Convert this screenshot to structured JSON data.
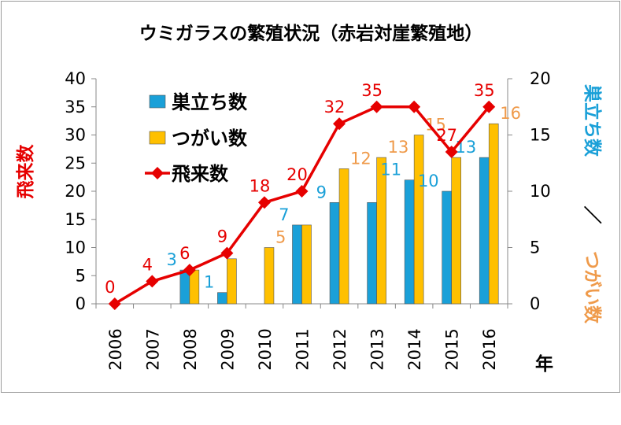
{
  "chart_data": {
    "type": "bar",
    "title": "ウミガラスの繁殖状況（赤岩対崖繁殖地）",
    "categories": [
      "2006",
      "2007",
      "2008",
      "2009",
      "2010",
      "2011",
      "2012",
      "2013",
      "2014",
      "2015",
      "2016"
    ],
    "xlabel": "年",
    "ylabel_left": "飛来数",
    "ylim_left": [
      0,
      40
    ],
    "yticks_left": [
      "0",
      "5",
      "10",
      "15",
      "20",
      "25",
      "30",
      "35",
      "40"
    ],
    "ylabel_right_1": "巣立ち数",
    "ylabel_right_sep": "／",
    "ylabel_right_2": "つがい数",
    "ylim_right": [
      0,
      20
    ],
    "yticks_right": [
      "0",
      "5",
      "10",
      "15",
      "20"
    ],
    "grid": false,
    "legend_position": "top-left",
    "series": [
      {
        "name": "巣立ち数",
        "type": "bar",
        "axis": "right",
        "color": "#1aa0d8",
        "values": [
          0,
          0,
          3,
          1,
          0,
          7,
          9,
          9,
          11,
          10,
          13
        ],
        "labels": [
          "",
          "",
          "3",
          "1",
          "",
          "7",
          "9",
          "",
          "11",
          "10",
          "13"
        ]
      },
      {
        "name": "つがい数",
        "type": "bar",
        "axis": "right",
        "color": "#ffc000",
        "values": [
          0,
          0,
          3,
          4,
          5,
          7,
          12,
          13,
          15,
          13,
          16
        ],
        "labels": [
          "",
          "",
          "",
          "",
          "5",
          "",
          "12",
          "13",
          "15",
          "",
          "16"
        ]
      },
      {
        "name": "飛来数",
        "type": "line",
        "axis": "left",
        "color": "#e60000",
        "values": [
          0,
          4,
          6,
          9,
          18,
          20,
          32,
          35,
          35,
          27,
          35
        ],
        "labels": [
          "0",
          "4",
          "6",
          "9",
          "18",
          "20",
          "32",
          "35",
          "",
          "27",
          "35"
        ]
      }
    ]
  }
}
